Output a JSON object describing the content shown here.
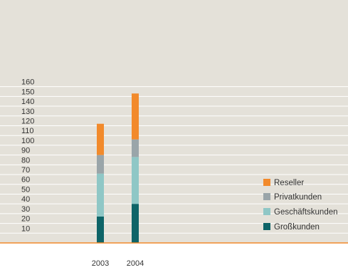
{
  "chart_data": {
    "type": "bar",
    "stacked": true,
    "categories": [
      "2003",
      "2004"
    ],
    "series": [
      {
        "name": "Großkunden",
        "color": "#0e6468",
        "values": [
          27,
          40
        ]
      },
      {
        "name": "Geschäftskunden",
        "color": "#8fc7c6",
        "values": [
          44,
          48
        ]
      },
      {
        "name": "Privatkunden",
        "color": "#9aa5a9",
        "values": [
          19,
          18
        ]
      },
      {
        "name": "Reseller",
        "color": "#f28a2b",
        "values": [
          32,
          47
        ]
      }
    ],
    "y_ticks": [
      "10",
      "20",
      "30",
      "40",
      "50",
      "60",
      "70",
      "80",
      "90",
      "100",
      "110",
      "120",
      "130",
      "140",
      "150",
      "160"
    ],
    "ylim": [
      0,
      160
    ],
    "grid": true,
    "legend_position": "bottom-right",
    "background_color": "#e4e1d9",
    "baseline_color": "#f28a2b"
  }
}
